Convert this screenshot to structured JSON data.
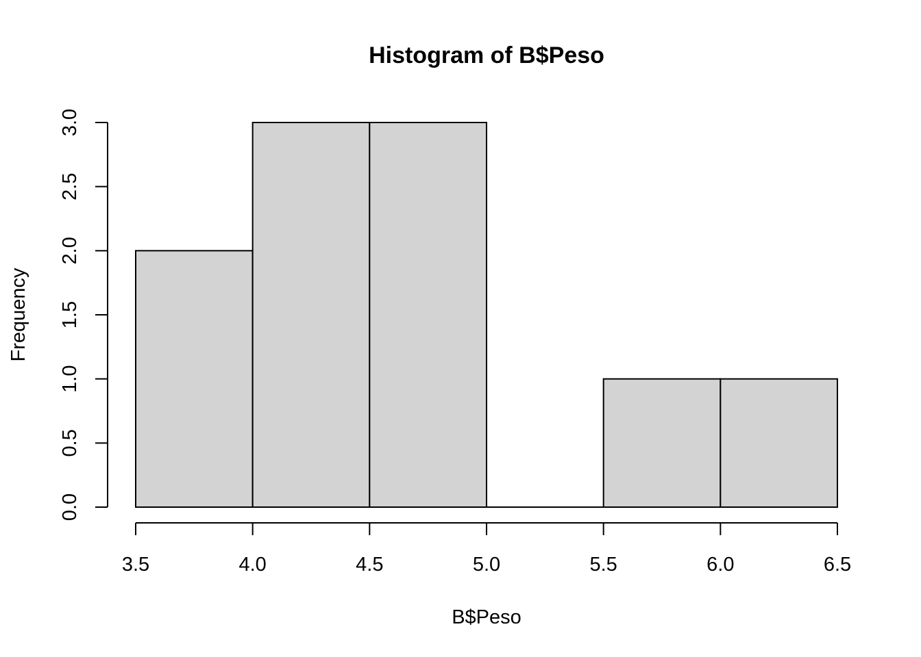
{
  "chart_data": {
    "type": "bar",
    "title": "Histogram of B$Peso",
    "xlabel": "B$Peso",
    "ylabel": "Frequency",
    "bins": [
      {
        "start": 3.5,
        "end": 4.0,
        "count": 2
      },
      {
        "start": 4.0,
        "end": 4.5,
        "count": 3
      },
      {
        "start": 4.5,
        "end": 5.0,
        "count": 3
      },
      {
        "start": 5.0,
        "end": 5.5,
        "count": 0
      },
      {
        "start": 5.5,
        "end": 6.0,
        "count": 1
      },
      {
        "start": 6.0,
        "end": 6.5,
        "count": 1
      }
    ],
    "xlim": [
      3.5,
      6.5
    ],
    "ylim": [
      0,
      3
    ],
    "x_ticks": [
      "3.5",
      "4.0",
      "4.5",
      "5.0",
      "5.5",
      "6.0",
      "6.5"
    ],
    "y_ticks": [
      "0.0",
      "0.5",
      "1.0",
      "1.5",
      "2.0",
      "2.5",
      "3.0"
    ],
    "grid": false,
    "bar_fill": "#d3d3d3",
    "bar_stroke": "#000000"
  }
}
